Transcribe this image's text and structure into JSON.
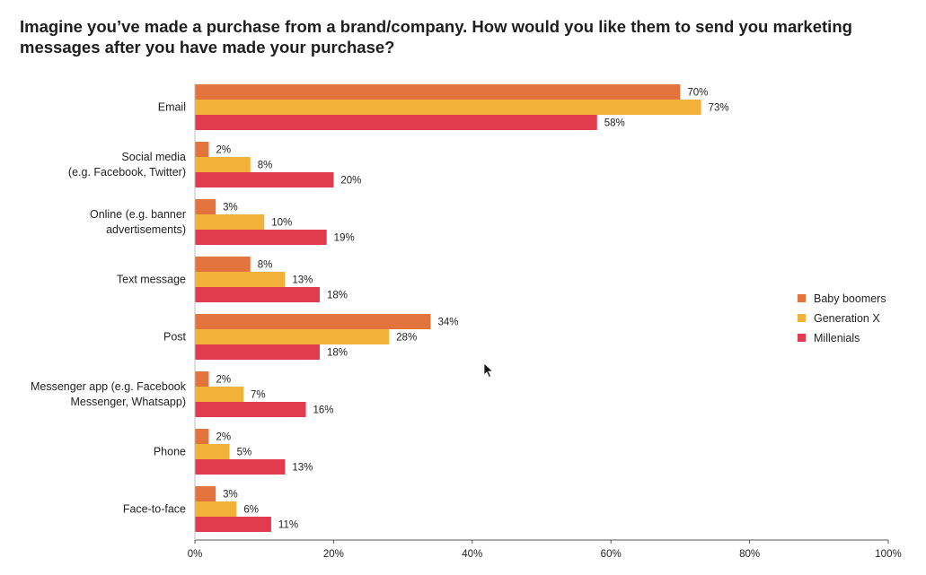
{
  "chart_data": {
    "type": "bar",
    "orientation": "horizontal",
    "title": "Imagine you’ve made a purchase from a brand/company. How would you like them to send you marketing messages after you have made your purchase?",
    "categories": [
      [
        "Email"
      ],
      [
        "Social media",
        "(e.g. Facebook, Twitter)"
      ],
      [
        "Online (e.g. banner",
        "advertisements)"
      ],
      [
        "Text message"
      ],
      [
        "Post"
      ],
      [
        "Messenger app (e.g. Facebook",
        "Messenger, Whatsapp)"
      ],
      [
        "Phone"
      ],
      [
        "Face-to-face"
      ]
    ],
    "series": [
      {
        "name": "Baby boomers",
        "color": "#E4743E",
        "values": [
          70,
          2,
          3,
          8,
          34,
          2,
          2,
          3
        ],
        "labels": [
          "70%",
          "2%",
          "3%",
          "8%",
          "34%",
          "2%",
          "2%",
          "3%"
        ]
      },
      {
        "name": "Generation X",
        "color": "#F2B23A",
        "values": [
          73,
          8,
          10,
          13,
          28,
          7,
          5,
          6
        ],
        "labels": [
          "73%",
          "8%",
          "10%",
          "13%",
          "28%",
          "7%",
          "5%",
          "6%"
        ]
      },
      {
        "name": "Millenials",
        "color": "#E23B4E",
        "values": [
          58,
          20,
          19,
          18,
          18,
          16,
          13,
          11
        ],
        "labels": [
          "58%",
          "20%",
          "19%",
          "18%",
          "18%",
          "16%",
          "13%",
          "11%"
        ]
      }
    ],
    "xlim": [
      0,
      100
    ],
    "xticks": [
      0,
      20,
      40,
      60,
      80,
      100
    ],
    "xtick_labels": [
      "0%",
      "20%",
      "40%",
      "60%",
      "80%",
      "100%"
    ],
    "grid": false,
    "legend_position": "right"
  }
}
